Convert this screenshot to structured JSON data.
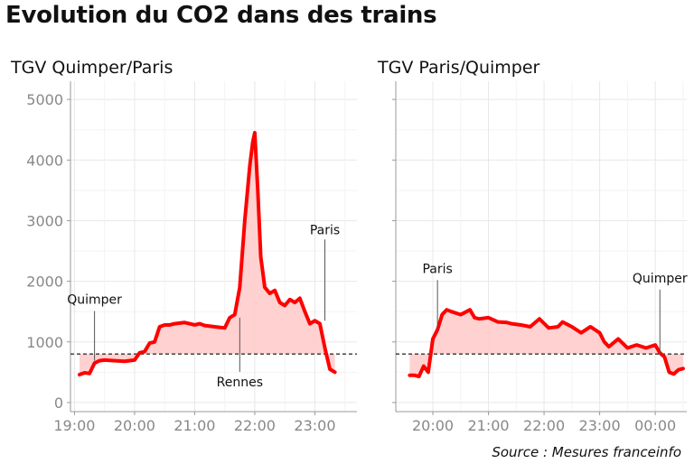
{
  "title": "Evolution du CO2 dans des trains",
  "source": "Source : Mesures franceinfo",
  "colors": {
    "line": "#ff0000",
    "fill": "#ffcccc",
    "threshold": "#333333",
    "grid": "#e8e8e8",
    "tick_text": "#888888"
  },
  "chart_data": [
    {
      "type": "area",
      "panel_title": "TGV Quimper/Paris",
      "x_unit": "time HH:MM",
      "ylim": [
        -150,
        5300
      ],
      "xlim": [
        "18:56",
        "23:42"
      ],
      "x_ticks": [
        "19:00",
        "20:00",
        "21:00",
        "22:00",
        "23:00"
      ],
      "y_ticks": [
        0,
        1000,
        2000,
        3000,
        4000,
        5000
      ],
      "threshold": 800,
      "grid": true,
      "x": [
        "19:05",
        "19:10",
        "19:15",
        "19:20",
        "19:25",
        "19:30",
        "19:40",
        "19:50",
        "20:00",
        "20:05",
        "20:10",
        "20:15",
        "20:20",
        "20:25",
        "20:30",
        "20:35",
        "20:40",
        "20:50",
        "21:00",
        "21:05",
        "21:10",
        "21:20",
        "21:30",
        "21:35",
        "21:40",
        "21:45",
        "21:50",
        "21:55",
        "21:58",
        "22:00",
        "22:03",
        "22:06",
        "22:10",
        "22:15",
        "22:20",
        "22:25",
        "22:30",
        "22:35",
        "22:40",
        "22:45",
        "22:50",
        "22:55",
        "23:00",
        "23:05",
        "23:10",
        "23:15",
        "23:20",
        "23:25",
        "23:27"
      ],
      "values": [
        460,
        490,
        480,
        650,
        690,
        700,
        690,
        680,
        700,
        820,
        840,
        980,
        1000,
        1250,
        1280,
        1280,
        1300,
        1320,
        1280,
        1300,
        1270,
        1250,
        1230,
        1400,
        1450,
        1900,
        3000,
        3900,
        4300,
        4450,
        3500,
        2400,
        1900,
        1800,
        1850,
        1650,
        1600,
        1700,
        1650,
        1720,
        1500,
        1300,
        1350,
        1300,
        900,
        550,
        500,
        null,
        null
      ],
      "annotations": [
        {
          "label": "Quimper",
          "x": "19:20",
          "y": 690
        },
        {
          "label": "Rennes",
          "x": "21:45",
          "y": 1400
        },
        {
          "label": "Paris",
          "x": "23:10",
          "y": 1350
        }
      ]
    },
    {
      "type": "area",
      "panel_title": "TGV Paris/Quimper",
      "x_unit": "time HH:MM",
      "ylim": [
        -150,
        5300
      ],
      "xlim": [
        "19:20",
        "00:34"
      ],
      "x_ticks": [
        "20:00",
        "21:00",
        "22:00",
        "23:00",
        "00:00"
      ],
      "y_ticks": [
        0,
        1000,
        2000,
        3000,
        4000,
        5000
      ],
      "threshold": 800,
      "grid": true,
      "x": [
        "19:35",
        "19:40",
        "19:45",
        "19:50",
        "19:55",
        "20:00",
        "20:05",
        "20:10",
        "20:15",
        "20:20",
        "20:30",
        "20:40",
        "20:45",
        "20:50",
        "21:00",
        "21:10",
        "21:20",
        "21:25",
        "21:35",
        "21:45",
        "21:55",
        "22:05",
        "22:15",
        "22:20",
        "22:30",
        "22:40",
        "22:50",
        "23:00",
        "23:05",
        "23:10",
        "23:20",
        "23:30",
        "23:40",
        "23:50",
        "00:00",
        "00:05",
        "00:10",
        "00:15",
        "00:20",
        "00:25",
        "00:30"
      ],
      "values": [
        450,
        450,
        430,
        600,
        500,
        1050,
        1200,
        1450,
        1530,
        1500,
        1450,
        1530,
        1400,
        1380,
        1400,
        1330,
        1320,
        1300,
        1280,
        1250,
        1380,
        1230,
        1250,
        1330,
        1250,
        1150,
        1250,
        1150,
        1000,
        920,
        1050,
        900,
        950,
        900,
        950,
        820,
        750,
        500,
        470,
        540,
        560
      ],
      "annotations": [
        {
          "label": "Paris",
          "x": "20:05",
          "y": 1200
        },
        {
          "label": "Quimper",
          "x": "00:05",
          "y": 820
        }
      ]
    }
  ]
}
